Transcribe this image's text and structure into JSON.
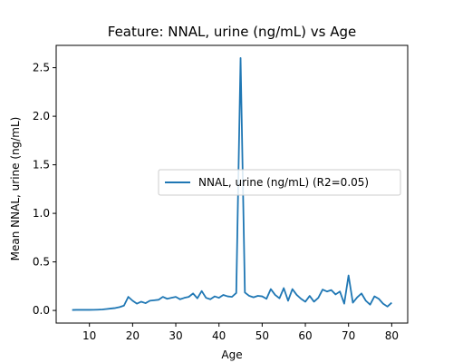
{
  "chart_data": {
    "type": "line",
    "title": "Feature: NNAL, urine (ng/mL) vs Age",
    "xlabel": "Age",
    "ylabel": "Mean NNAL, urine (ng/mL)",
    "xlim": [
      2.3,
      83.7
    ],
    "ylim": [
      -0.13,
      2.73
    ],
    "xticks": [
      10,
      20,
      30,
      40,
      50,
      60,
      70,
      80
    ],
    "yticks": [
      0.0,
      0.5,
      1.0,
      1.5,
      2.0,
      2.5
    ],
    "ytick_labels": [
      "0.0",
      "0.5",
      "1.0",
      "1.5",
      "2.0",
      "2.5"
    ],
    "grid": false,
    "legend": {
      "placement": "center-right"
    },
    "colors": {
      "series": "#1f77b4"
    },
    "series": [
      {
        "name": "NNAL, urine (ng/mL) (R2=0.05)",
        "x": [
          6,
          7,
          8,
          9,
          10,
          11,
          12,
          13,
          14,
          15,
          16,
          17,
          18,
          19,
          20,
          21,
          22,
          23,
          24,
          25,
          26,
          27,
          28,
          29,
          30,
          31,
          32,
          33,
          34,
          35,
          36,
          37,
          38,
          39,
          40,
          41,
          42,
          43,
          44,
          45,
          46,
          47,
          48,
          49,
          50,
          51,
          52,
          53,
          54,
          55,
          56,
          57,
          58,
          59,
          60,
          61,
          62,
          63,
          64,
          65,
          66,
          67,
          68,
          69,
          70,
          71,
          72,
          73,
          74,
          75,
          76,
          77,
          78,
          79,
          80
        ],
        "values": [
          0.005,
          0.006,
          0.007,
          0.006,
          0.006,
          0.007,
          0.008,
          0.01,
          0.015,
          0.02,
          0.025,
          0.035,
          0.05,
          0.14,
          0.1,
          0.07,
          0.09,
          0.075,
          0.1,
          0.105,
          0.11,
          0.14,
          0.12,
          0.13,
          0.14,
          0.115,
          0.13,
          0.14,
          0.175,
          0.125,
          0.2,
          0.13,
          0.115,
          0.145,
          0.13,
          0.16,
          0.145,
          0.14,
          0.18,
          2.6,
          0.185,
          0.15,
          0.135,
          0.15,
          0.145,
          0.12,
          0.22,
          0.16,
          0.125,
          0.23,
          0.1,
          0.22,
          0.16,
          0.12,
          0.09,
          0.15,
          0.09,
          0.13,
          0.215,
          0.195,
          0.21,
          0.165,
          0.195,
          0.07,
          0.36,
          0.08,
          0.135,
          0.175,
          0.1,
          0.06,
          0.145,
          0.12,
          0.07,
          0.04,
          0.08
        ]
      }
    ]
  }
}
